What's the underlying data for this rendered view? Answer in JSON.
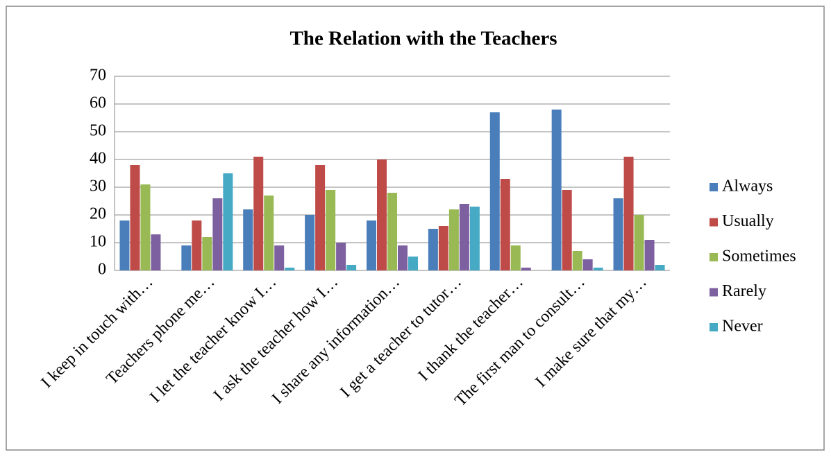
{
  "chart_data": {
    "type": "bar",
    "title": "The Relation with the Teachers",
    "categories": [
      "I keep in touch with…",
      "Teachers phone me…",
      "I let the teacher know I…",
      "I ask the teacher how I…",
      "I share any information…",
      "I get a teacher to tutor…",
      "I thank the teacher…",
      "The first man to consult…",
      "I make sure that my…"
    ],
    "series": [
      {
        "name": "Always",
        "color": "#4a7ebb",
        "values": [
          18,
          9,
          22,
          20,
          18,
          15,
          57,
          58,
          26
        ]
      },
      {
        "name": "Usually",
        "color": "#be4b48",
        "values": [
          38,
          18,
          41,
          38,
          40,
          16,
          33,
          29,
          41
        ]
      },
      {
        "name": "Sometimes",
        "color": "#98b954",
        "values": [
          31,
          12,
          27,
          29,
          28,
          22,
          9,
          7,
          20
        ]
      },
      {
        "name": "Rarely",
        "color": "#7d60a0",
        "values": [
          13,
          26,
          9,
          10,
          9,
          24,
          1,
          4,
          11
        ]
      },
      {
        "name": "Never",
        "color": "#46aac5",
        "values": [
          0,
          35,
          1,
          2,
          5,
          23,
          0,
          1,
          2
        ]
      }
    ],
    "ylim": [
      0,
      70
    ],
    "yticks": [
      0,
      10,
      20,
      30,
      40,
      50,
      60,
      70
    ],
    "grid": true,
    "legend": "right"
  }
}
